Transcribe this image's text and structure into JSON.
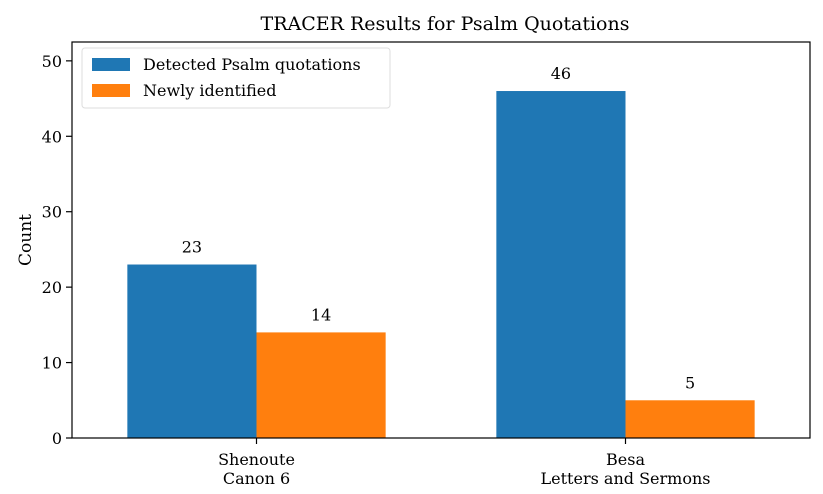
{
  "chart_data": {
    "type": "bar",
    "title": "TRACER Results for Psalm Quotations",
    "xlabel": "",
    "ylabel": "Count",
    "ylim": [
      0,
      52.5
    ],
    "yticks": [
      0,
      10,
      20,
      30,
      40,
      50
    ],
    "categories": [
      [
        "Shenoute",
        "Canon 6"
      ],
      [
        "Besa",
        "Letters and Sermons"
      ]
    ],
    "series": [
      {
        "name": "Detected Psalm quotations",
        "values": [
          23,
          46
        ],
        "color": "#1f77b4"
      },
      {
        "name": "Newly identified",
        "values": [
          14,
          5
        ],
        "color": "#ff7f0e"
      }
    ],
    "data_labels": true,
    "legend": "top-left",
    "grid": false
  }
}
